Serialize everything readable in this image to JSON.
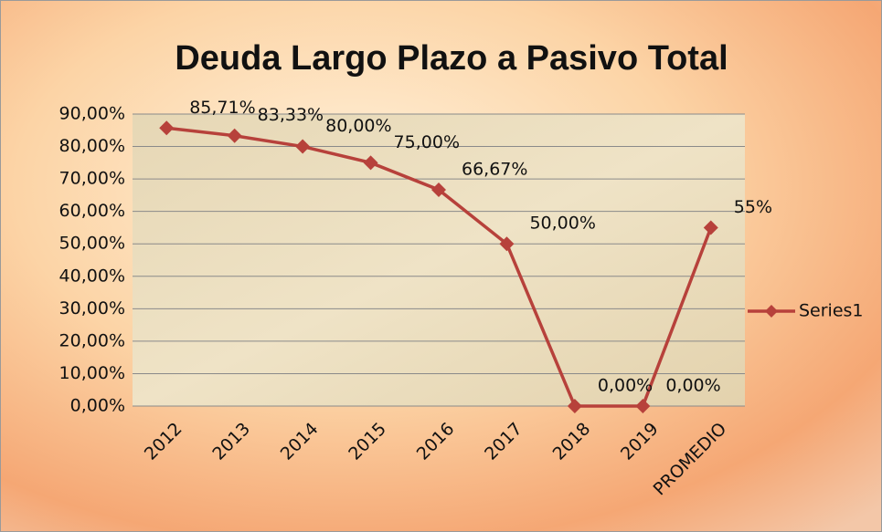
{
  "chart_data": {
    "type": "line",
    "title": "Deuda Largo Plazo a Pasivo Total",
    "categories": [
      "2012",
      "2013",
      "2014",
      "2015",
      "2016",
      "2017",
      "2018",
      "2019",
      "PROMEDIO"
    ],
    "series": [
      {
        "name": "Series1",
        "color": "#b7413b",
        "values": [
          85.71,
          83.33,
          80,
          75,
          66.67,
          50,
          0,
          0,
          55
        ],
        "value_labels": [
          "85,71%",
          "83,33%",
          "80,00%",
          "75,00%",
          "66,67%",
          "50,00%",
          "0,00%",
          "0,00%",
          "55%"
        ]
      }
    ],
    "ylim": [
      0,
      90
    ],
    "yticks": [
      {
        "value": 0,
        "label": "0,00%"
      },
      {
        "value": 10,
        "label": "10,00%"
      },
      {
        "value": 20,
        "label": "20,00%"
      },
      {
        "value": 30,
        "label": "30,00%"
      },
      {
        "value": 40,
        "label": "40,00%"
      },
      {
        "value": 50,
        "label": "50,00%"
      },
      {
        "value": 60,
        "label": "60,00%"
      },
      {
        "value": 70,
        "label": "70,00%"
      },
      {
        "value": 80,
        "label": "80,00%"
      },
      {
        "value": 90,
        "label": "90,00%"
      }
    ],
    "grid": true,
    "legend": "right"
  }
}
